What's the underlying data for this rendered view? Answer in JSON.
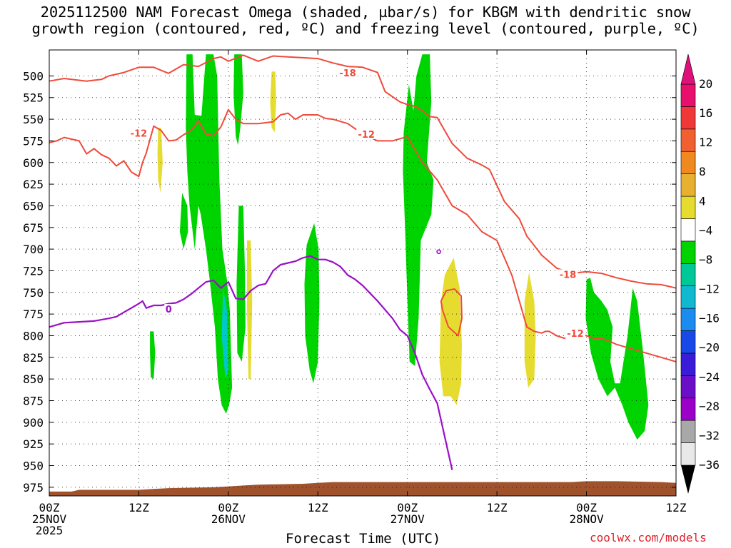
{
  "title_line1": "2025112500 NAM Forecast Omega (shaded, µbar/s) for KBGM with dendritic snow",
  "title_line2": "growth region (contoured, red, ºC) and freezing level (contoured, purple, ºC)",
  "xlabel": "Forecast Time (UTC)",
  "credit": "coolwx.com/models",
  "colors": {
    "dendritic": "#f04a3a",
    "freezing": "#9a0fc8",
    "terrain": "#a0522d",
    "green": "#00d400",
    "cyan": "#00c8c8",
    "yellow": "#e6dc30"
  },
  "chart_data": {
    "type": "time-height",
    "x_range_hours": [
      0,
      84
    ],
    "ylim_mb": [
      470,
      985
    ],
    "x_ticks": [
      {
        "h": 0,
        "lines": [
          "00Z",
          "25NOV",
          "2025"
        ]
      },
      {
        "h": 12,
        "lines": [
          "12Z"
        ]
      },
      {
        "h": 24,
        "lines": [
          "00Z",
          "26NOV"
        ]
      },
      {
        "h": 36,
        "lines": [
          "12Z"
        ]
      },
      {
        "h": 48,
        "lines": [
          "00Z",
          "27NOV"
        ]
      },
      {
        "h": 60,
        "lines": [
          "12Z"
        ]
      },
      {
        "h": 72,
        "lines": [
          "00Z",
          "28NOV"
        ]
      },
      {
        "h": 84,
        "lines": [
          "12Z"
        ]
      }
    ],
    "y_ticks": [
      500,
      525,
      550,
      575,
      600,
      625,
      650,
      675,
      700,
      725,
      750,
      775,
      800,
      825,
      850,
      875,
      900,
      925,
      950,
      975
    ],
    "grid": true,
    "colorbar": {
      "labels": [
        "20",
        "16",
        "12",
        "8",
        "4",
        "−4",
        "−8",
        "−12",
        "−16",
        "−20",
        "−24",
        "−28",
        "−32",
        "−36"
      ],
      "colors": [
        "#e8e8e8",
        "#a8a8a8",
        "#9a00c8",
        "#6a0ec8",
        "#3a1cd8",
        "#1848e8",
        "#1a8cf0",
        "#10b8d0",
        "#00c896",
        "#00d400",
        "#ffffff",
        "#e6dc30",
        "#e8b030",
        "#f08a20",
        "#f06030",
        "#f03838",
        "#e8106c"
      ],
      "top_color": "#e0107a",
      "bottom_color": "#000000"
    },
    "contour_labels": [
      {
        "text": "-18",
        "h": 40,
        "mb": 497,
        "series": "dendritic"
      },
      {
        "text": "-12",
        "h": 12,
        "mb": 567,
        "series": "dendritic"
      },
      {
        "text": "-12",
        "h": 42.5,
        "mb": 568,
        "series": "dendritic"
      },
      {
        "text": "-18",
        "h": 69.5,
        "mb": 730,
        "series": "dendritic"
      },
      {
        "text": "-12",
        "h": 70.5,
        "mb": 798,
        "series": "dendritic"
      },
      {
        "text": "0",
        "h": 16,
        "mb": 770,
        "series": "freezing"
      }
    ],
    "dendritic_minus18_upper": {
      "x": [
        0,
        2,
        5,
        7,
        8,
        10,
        12,
        14,
        16,
        18,
        20,
        22,
        23,
        24,
        26,
        28,
        30,
        32,
        34,
        36,
        38,
        40,
        42,
        44,
        45,
        47,
        48,
        49,
        50,
        51,
        52,
        54,
        56,
        58,
        59,
        61,
        63,
        64,
        66,
        68,
        70,
        72,
        74,
        76,
        78,
        80,
        82,
        84
      ],
      "y": [
        506,
        503,
        506,
        504,
        500,
        496,
        490,
        490,
        497,
        487,
        489,
        480,
        478,
        483,
        476,
        483,
        477,
        478,
        479,
        480,
        485,
        489,
        490,
        496,
        518,
        530,
        533,
        535,
        540,
        547,
        548,
        578,
        595,
        603,
        608,
        645,
        665,
        685,
        707,
        722,
        728,
        726,
        728,
        733,
        737,
        740,
        741,
        745
      ]
    },
    "dendritic_minus18_lower": {
      "x": [
        0,
        1,
        2,
        4,
        5,
        6,
        7,
        8,
        9,
        10,
        11,
        12,
        12.5,
        13,
        14,
        15,
        16,
        17,
        18,
        19,
        20,
        21,
        22,
        23,
        24,
        25,
        26,
        28,
        30,
        31,
        32,
        33,
        34,
        36,
        37,
        38,
        40,
        42,
        44,
        46,
        48,
        50,
        52,
        54,
        56,
        58,
        60,
        62,
        63,
        64,
        65,
        66,
        66.5,
        67,
        68,
        69,
        70,
        71,
        72,
        73,
        74,
        75,
        76,
        78,
        80,
        82,
        84
      ],
      "y": [
        577,
        575,
        571,
        575,
        590,
        584,
        591,
        595,
        604,
        598,
        611,
        616,
        600,
        589,
        558,
        563,
        575,
        574,
        568,
        563,
        552,
        567,
        569,
        559,
        539,
        550,
        555,
        555,
        553,
        545,
        543,
        550,
        545,
        545,
        549,
        550,
        555,
        567,
        575,
        575,
        570,
        600,
        620,
        650,
        660,
        680,
        690,
        730,
        760,
        790,
        795,
        797,
        795,
        795,
        800,
        803,
        800,
        797,
        800,
        803,
        803,
        806,
        810,
        815,
        820,
        825,
        830
      ]
    },
    "dendritic_loop": {
      "x": [
        52.5,
        53.2,
        54.3,
        55.2,
        55.3,
        54.8,
        53.5,
        52.7,
        52.5
      ],
      "y": [
        760,
        748,
        746,
        754,
        780,
        800,
        790,
        770,
        760
      ]
    },
    "freezing_level": {
      "x": [
        0,
        2,
        4,
        6,
        8,
        9,
        10,
        11,
        12,
        12.5,
        13,
        14,
        15,
        16,
        17,
        18,
        19,
        20,
        21,
        22,
        23,
        24,
        25,
        26,
        27,
        28,
        29,
        30,
        31,
        32,
        33,
        34,
        35,
        36,
        37,
        38,
        39,
        40,
        41,
        42,
        44,
        46,
        47,
        48,
        49,
        50,
        51,
        52,
        54
      ],
      "y": [
        790,
        785,
        784,
        783,
        780,
        778,
        773,
        768,
        763,
        760,
        768,
        765,
        765,
        763,
        762,
        758,
        752,
        745,
        738,
        736,
        745,
        738,
        757,
        758,
        748,
        742,
        740,
        725,
        718,
        716,
        714,
        710,
        708,
        712,
        712,
        715,
        720,
        730,
        735,
        742,
        760,
        780,
        793,
        800,
        820,
        845,
        862,
        878,
        955
      ]
    },
    "omega_shades": [
      {
        "level": "-4 to -8",
        "color": "green",
        "outline": [
          [
            18.4,
            475
          ],
          [
            19.2,
            475
          ],
          [
            19.5,
            545
          ],
          [
            20.4,
            546
          ],
          [
            21.0,
            475
          ],
          [
            22.0,
            475
          ],
          [
            22.5,
            500
          ],
          [
            22.8,
            620
          ],
          [
            23.2,
            700
          ],
          [
            23.8,
            735
          ],
          [
            24.2,
            770
          ],
          [
            24.5,
            860
          ],
          [
            24.1,
            880
          ],
          [
            23.7,
            890
          ],
          [
            23.1,
            880
          ],
          [
            22.6,
            850
          ],
          [
            22.2,
            790
          ],
          [
            21.5,
            735
          ],
          [
            21.0,
            700
          ],
          [
            20.3,
            660
          ],
          [
            20.0,
            650
          ],
          [
            19.5,
            700
          ],
          [
            18.8,
            650
          ],
          [
            18.5,
            610
          ],
          [
            18.3,
            560
          ]
        ]
      },
      {
        "level": "-4 to -8",
        "color": "green",
        "outline": [
          [
            17.8,
            635
          ],
          [
            18.5,
            650
          ],
          [
            18.6,
            680
          ],
          [
            18.0,
            700
          ],
          [
            17.5,
            680
          ],
          [
            17.7,
            650
          ]
        ]
      },
      {
        "level": "-8 to -12",
        "color": "cyan",
        "outline": [
          [
            23.3,
            745
          ],
          [
            23.8,
            770
          ],
          [
            24.0,
            840
          ],
          [
            23.6,
            850
          ],
          [
            23.1,
            800
          ]
        ]
      },
      {
        "level": "-4 to -8",
        "color": "green",
        "outline": [
          [
            24.8,
            475
          ],
          [
            25.8,
            475
          ],
          [
            26.0,
            520
          ],
          [
            25.6,
            560
          ],
          [
            25.3,
            580
          ],
          [
            25.0,
            570
          ],
          [
            24.7,
            520
          ]
        ]
      },
      {
        "level": "-4 to -8",
        "color": "green",
        "outline": [
          [
            25.4,
            650
          ],
          [
            26.0,
            650
          ],
          [
            26.2,
            720
          ],
          [
            26.3,
            790
          ],
          [
            25.8,
            830
          ],
          [
            25.2,
            820
          ],
          [
            25.1,
            740
          ]
        ]
      },
      {
        "level": "-4 to -8",
        "color": "green",
        "outline": [
          [
            34.5,
            695
          ],
          [
            35.5,
            670
          ],
          [
            36.1,
            700
          ],
          [
            36.2,
            760
          ],
          [
            36.0,
            830
          ],
          [
            35.4,
            855
          ],
          [
            34.9,
            840
          ],
          [
            34.3,
            800
          ],
          [
            34.2,
            740
          ]
        ]
      },
      {
        "level": "-4 to -8",
        "color": "green",
        "outline": [
          [
            47.5,
            565
          ],
          [
            48.2,
            510
          ],
          [
            48.8,
            540
          ],
          [
            49.2,
            500
          ],
          [
            50.0,
            475
          ],
          [
            51.0,
            475
          ],
          [
            51.2,
            530
          ],
          [
            50.6,
            600
          ],
          [
            51.5,
            620
          ],
          [
            51.2,
            660
          ],
          [
            49.8,
            690
          ],
          [
            49.5,
            780
          ],
          [
            49.0,
            835
          ],
          [
            48.3,
            830
          ],
          [
            48.0,
            760
          ],
          [
            47.7,
            680
          ],
          [
            47.4,
            610
          ]
        ]
      },
      {
        "level": "-4 to -8",
        "color": "green",
        "outline": [
          [
            72.0,
            735
          ],
          [
            72.5,
            733
          ],
          [
            73.0,
            750
          ],
          [
            74.0,
            760
          ],
          [
            74.8,
            770
          ],
          [
            75.5,
            790
          ],
          [
            75.2,
            830
          ],
          [
            75.8,
            855
          ],
          [
            76.5,
            855
          ],
          [
            77.5,
            800
          ],
          [
            78.2,
            745
          ],
          [
            78.8,
            760
          ],
          [
            79.6,
            820
          ],
          [
            80.3,
            880
          ],
          [
            79.8,
            910
          ],
          [
            78.8,
            920
          ],
          [
            77.6,
            900
          ],
          [
            76.8,
            880
          ],
          [
            75.8,
            860
          ],
          [
            74.8,
            870
          ],
          [
            73.6,
            850
          ],
          [
            72.6,
            820
          ],
          [
            71.9,
            780
          ]
        ]
      },
      {
        "level": "-4 to -8",
        "color": "green",
        "outline": [
          [
            13.5,
            795
          ],
          [
            14.0,
            795
          ],
          [
            14.2,
            820
          ],
          [
            14.0,
            850
          ],
          [
            13.6,
            848
          ],
          [
            13.5,
            820
          ]
        ]
      },
      {
        "level": "4 to 8",
        "color": "yellow",
        "outline": [
          [
            14.6,
            560
          ],
          [
            15.0,
            560
          ],
          [
            15.2,
            600
          ],
          [
            14.9,
            635
          ],
          [
            14.6,
            620
          ],
          [
            14.5,
            590
          ]
        ]
      },
      {
        "level": "4 to 8",
        "color": "yellow",
        "outline": [
          [
            29.8,
            495
          ],
          [
            30.3,
            495
          ],
          [
            30.4,
            530
          ],
          [
            30.2,
            565
          ],
          [
            29.8,
            560
          ],
          [
            29.6,
            530
          ]
        ]
      },
      {
        "level": "4 to 8",
        "color": "yellow",
        "outline": [
          [
            26.5,
            690
          ],
          [
            27.0,
            690
          ],
          [
            27.2,
            760
          ],
          [
            27.0,
            850
          ],
          [
            26.7,
            850
          ],
          [
            26.5,
            770
          ]
        ]
      },
      {
        "level": "4 to 8",
        "color": "yellow",
        "outline": [
          [
            52.5,
            760
          ],
          [
            53.0,
            730
          ],
          [
            54.2,
            710
          ],
          [
            55.0,
            745
          ],
          [
            55.3,
            810
          ],
          [
            55.2,
            855
          ],
          [
            54.6,
            880
          ],
          [
            53.8,
            870
          ],
          [
            52.8,
            870
          ],
          [
            52.3,
            830
          ]
        ]
      },
      {
        "level": "4 to 8",
        "color": "yellow",
        "outline": [
          [
            63.7,
            760
          ],
          [
            64.3,
            727
          ],
          [
            65.0,
            760
          ],
          [
            65.2,
            800
          ],
          [
            65.0,
            850
          ],
          [
            64.2,
            860
          ],
          [
            63.7,
            830
          ]
        ]
      }
    ],
    "terrain_top_mb": {
      "x": [
        0,
        3,
        4,
        10,
        12,
        14,
        16,
        22,
        24,
        26,
        28,
        34,
        36,
        38,
        40,
        46,
        48,
        50,
        52,
        58,
        60,
        62,
        64,
        70,
        72,
        74,
        76,
        82,
        84
      ],
      "y": [
        980,
        980,
        978,
        978,
        978,
        977,
        976,
        975,
        974,
        973,
        972,
        971,
        970,
        969,
        969,
        969,
        969,
        969,
        969,
        969,
        969,
        969,
        969,
        969,
        968,
        968,
        968,
        969,
        970
      ]
    }
  }
}
